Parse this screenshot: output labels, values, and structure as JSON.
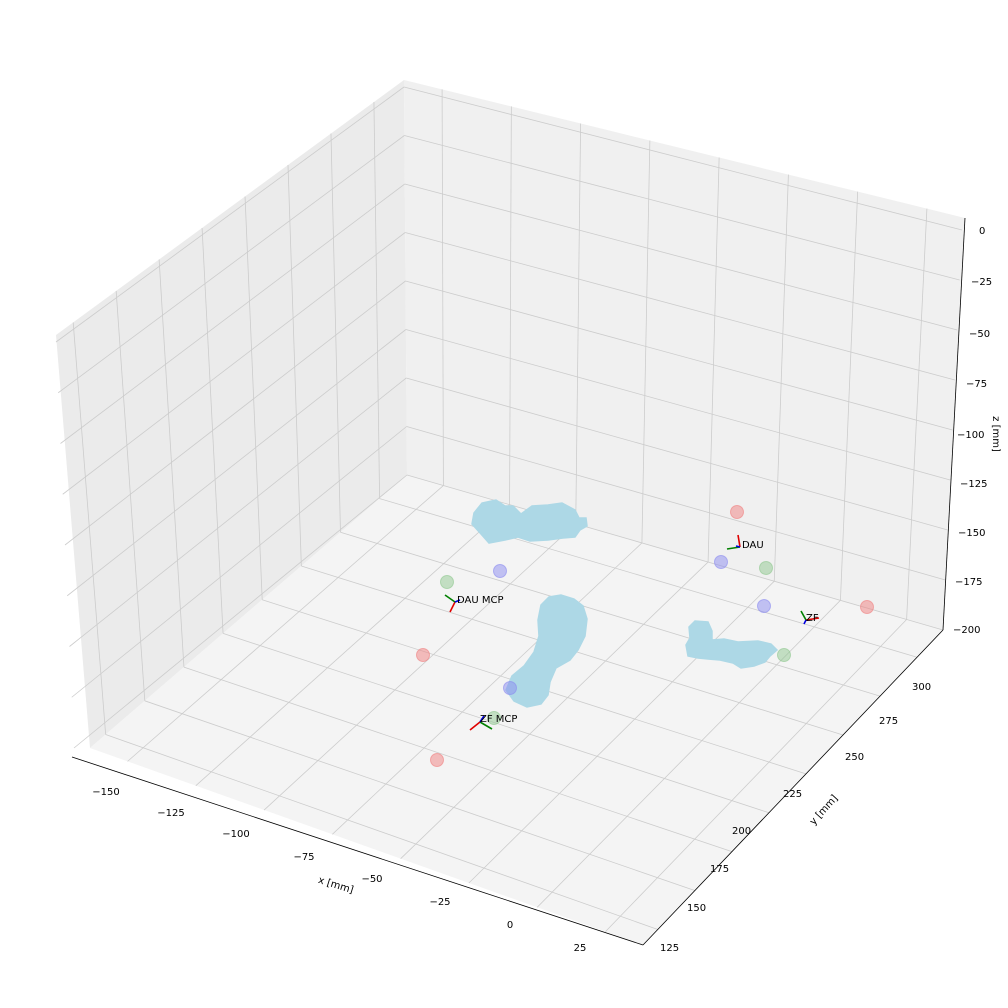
{
  "chart_data": {
    "type": "scatter",
    "projection": "3d",
    "title": "",
    "xlabel": "x [mm]",
    "ylabel": "y [mm]",
    "zlabel": "z [mm]",
    "xlim": [
      -160,
      35
    ],
    "ylim": [
      120,
      310
    ],
    "zlim": [
      -200,
      0
    ],
    "grid": true,
    "x_ticks": [
      "−150",
      "−125",
      "−100",
      "−75",
      "−50",
      "−25",
      "0",
      "25"
    ],
    "y_ticks": [
      "125",
      "150",
      "175",
      "200",
      "225",
      "250",
      "275",
      "300"
    ],
    "z_ticks": [
      "0",
      "−25",
      "−50",
      "−75",
      "−100",
      "−125",
      "−150",
      "−175",
      "−200"
    ],
    "colors": {
      "pane_left": "#ebebeb",
      "pane_back": "#f0f0f0",
      "pane_floor": "#f4f4f4",
      "grid": "#cccccc",
      "surface": "#add8e6",
      "marker_red": "#f08080",
      "marker_green": "#90c890",
      "marker_blue": "#8c8cf0"
    },
    "annotations": [
      {
        "label": "DAU",
        "x": 5,
        "y": 285,
        "z": -170
      },
      {
        "label": "DAU MCP",
        "x": -110,
        "y": 215,
        "z": -170
      },
      {
        "label": "ZF",
        "x": 25,
        "y": 240,
        "z": -200
      },
      {
        "label": "ZF MCP",
        "x": -60,
        "y": 165,
        "z": -175
      }
    ],
    "series": [
      {
        "color": "red",
        "points": [
          {
            "x": -20,
            "y": 300,
            "z": -155
          },
          {
            "x": 28,
            "y": 265,
            "z": -190
          },
          {
            "x": -118,
            "y": 200,
            "z": -175
          },
          {
            "x": -80,
            "y": 150,
            "z": -180
          }
        ]
      },
      {
        "color": "green",
        "points": [
          {
            "x": -125,
            "y": 230,
            "z": -170
          },
          {
            "x": 5,
            "y": 270,
            "z": -170
          },
          {
            "x": 10,
            "y": 225,
            "z": -185
          },
          {
            "x": -60,
            "y": 170,
            "z": -180
          }
        ]
      },
      {
        "color": "blue",
        "points": [
          {
            "x": -85,
            "y": 250,
            "z": -170
          },
          {
            "x": -15,
            "y": 275,
            "z": -170
          },
          {
            "x": 5,
            "y": 245,
            "z": -175
          },
          {
            "x": -55,
            "y": 185,
            "z": -175
          }
        ]
      }
    ],
    "surfaces": [
      {
        "name": "",
        "x_range": [
          -110,
          -50
        ],
        "y_range": [
          265,
          300
        ],
        "z": -180
      },
      {
        "name": "",
        "x_range": [
          -50,
          -30
        ],
        "y_range": [
          175,
          240
        ],
        "z": -190
      },
      {
        "name": "",
        "x_range": [
          -5,
          25
        ],
        "y_range": [
          210,
          235
        ],
        "z": -200
      }
    ]
  }
}
